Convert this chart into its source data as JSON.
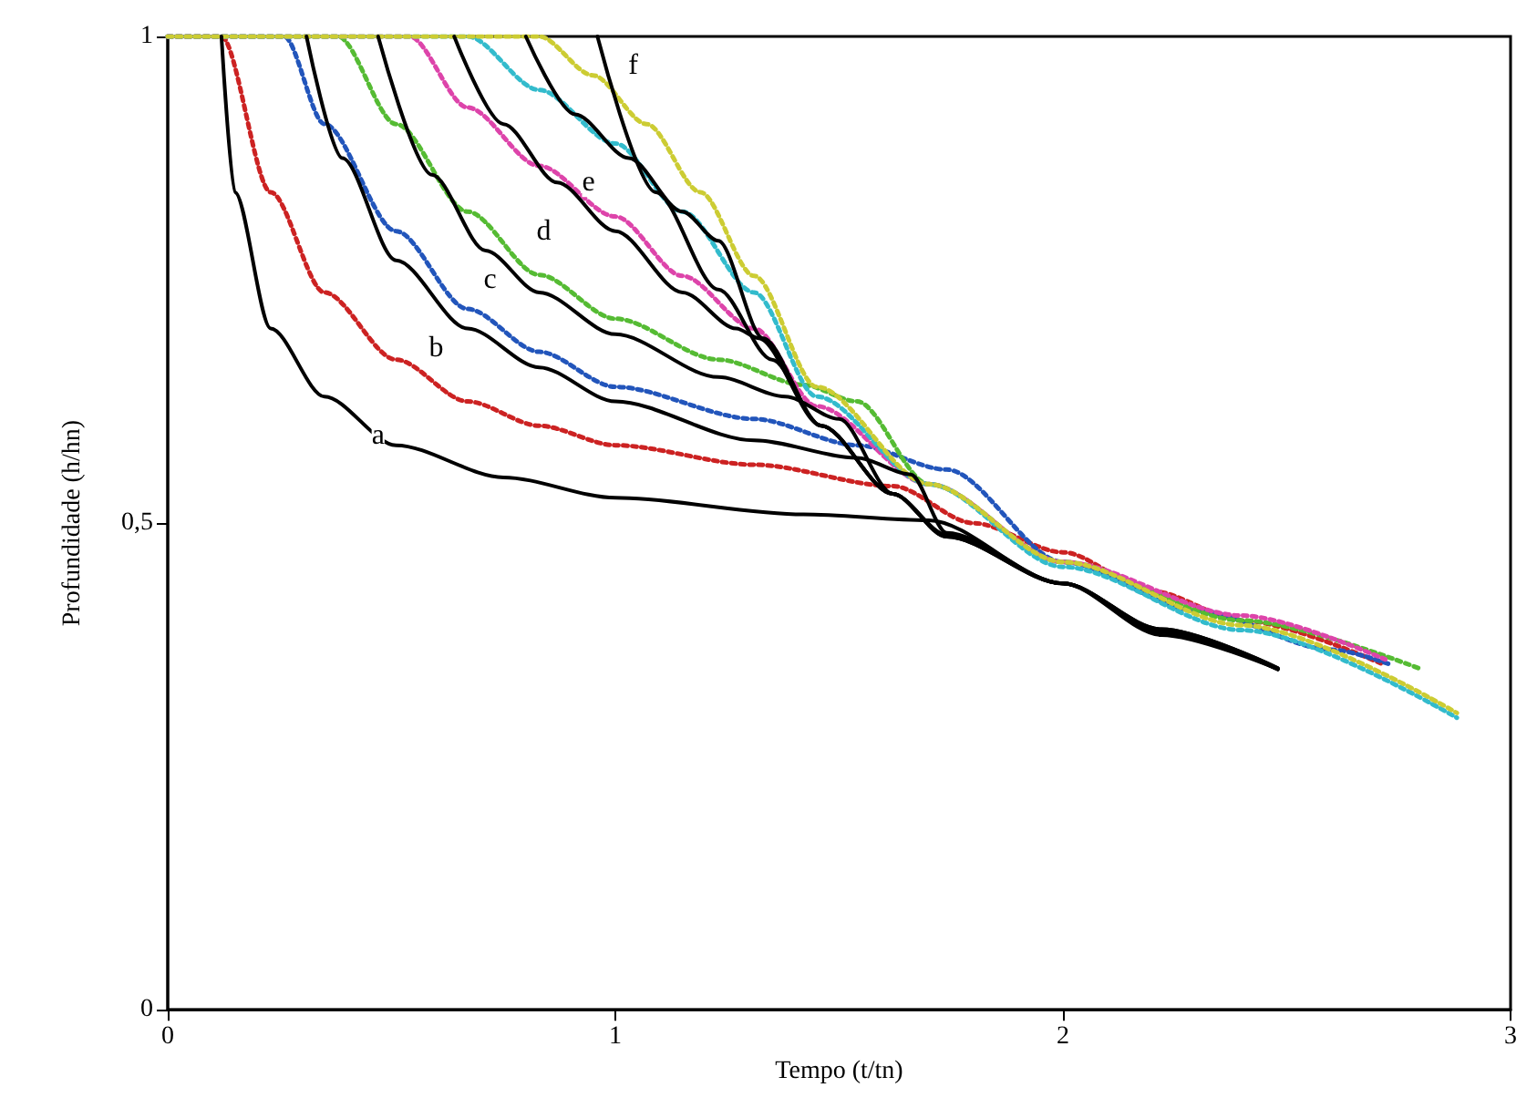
{
  "chart_data": {
    "type": "line",
    "xlabel": "Tempo (t/tn)",
    "ylabel": "Profundidade (h/hn)",
    "xlim": [
      0,
      3
    ],
    "ylim": [
      0,
      1
    ],
    "xticks": [
      0,
      1,
      2,
      3
    ],
    "yticks": [
      0,
      {
        "value": 0.5,
        "label": "0,5"
      },
      1
    ],
    "grid": false,
    "marker": "none",
    "series": [
      {
        "color": "#000000",
        "line_style": "solid",
        "x": [
          0.12,
          0.15,
          0.23,
          0.35,
          0.51,
          0.75,
          1.0,
          1.42,
          1.7,
          2.0,
          2.22,
          2.48
        ],
        "values": [
          1,
          0.84,
          0.7,
          0.63,
          0.58,
          0.547,
          0.526,
          0.509,
          0.503,
          0.438,
          0.385,
          0.35
        ]
      },
      {
        "color": "#000000",
        "line_style": "solid",
        "x": [
          0.31,
          0.39,
          0.51,
          0.67,
          0.83,
          1.0,
          1.31,
          1.54,
          1.66,
          1.74,
          2.0,
          2.22,
          2.48
        ],
        "values": [
          1,
          0.875,
          0.77,
          0.7,
          0.66,
          0.625,
          0.585,
          0.567,
          0.55,
          0.49,
          0.438,
          0.388,
          0.35
        ]
      },
      {
        "color": "#000000",
        "line_style": "solid",
        "x": [
          0.47,
          0.59,
          0.71,
          0.83,
          1.0,
          1.23,
          1.38,
          1.5,
          1.62,
          1.74,
          2.0,
          2.22,
          2.48
        ],
        "values": [
          1,
          0.858,
          0.78,
          0.737,
          0.694,
          0.65,
          0.63,
          0.607,
          0.53,
          0.488,
          0.438,
          0.389,
          0.35
        ]
      },
      {
        "color": "#000000",
        "line_style": "solid",
        "x": [
          0.64,
          0.75,
          0.87,
          1.0,
          1.15,
          1.27,
          1.32,
          1.46,
          1.62,
          1.74,
          2.0,
          2.22,
          2.48
        ],
        "values": [
          1,
          0.91,
          0.85,
          0.8,
          0.737,
          0.7,
          0.69,
          0.6,
          0.53,
          0.487,
          0.438,
          0.39,
          0.35
        ]
      },
      {
        "color": "#000000",
        "line_style": "solid",
        "x": [
          0.8,
          0.91,
          1.03,
          1.15,
          1.23,
          1.33,
          1.46,
          1.62,
          1.74,
          2.0,
          2.22,
          2.48
        ],
        "values": [
          1,
          0.92,
          0.875,
          0.82,
          0.79,
          0.69,
          0.6,
          0.53,
          0.486,
          0.438,
          0.391,
          0.351
        ]
      },
      {
        "color": "#000000",
        "line_style": "solid",
        "x": [
          0.96,
          1.09,
          1.23,
          1.35,
          1.46,
          1.62,
          1.74,
          2.0,
          2.22,
          2.48
        ],
        "values": [
          1,
          0.84,
          0.74,
          0.668,
          0.6,
          0.53,
          0.486,
          0.438,
          0.391,
          0.351
        ]
      },
      {
        "color": "#cc2222",
        "line_style": "dotted",
        "x": [
          0,
          0.12,
          0.23,
          0.35,
          0.51,
          0.67,
          0.83,
          1.0,
          1.31,
          1.62,
          1.8,
          2.0,
          2.2,
          2.4,
          2.71
        ],
        "values": [
          1,
          1,
          0.84,
          0.737,
          0.668,
          0.625,
          0.6,
          0.58,
          0.56,
          0.538,
          0.5,
          0.47,
          0.43,
          0.4,
          0.356
        ]
      },
      {
        "color": "#2255bb",
        "line_style": "dotted",
        "x": [
          0,
          0.26,
          0.35,
          0.51,
          0.67,
          0.83,
          1.0,
          1.31,
          1.54,
          1.74,
          2.0,
          2.3,
          2.6,
          2.73
        ],
        "values": [
          1,
          1,
          0.91,
          0.8,
          0.72,
          0.676,
          0.64,
          0.607,
          0.58,
          0.555,
          0.46,
          0.41,
          0.37,
          0.355
        ]
      },
      {
        "color": "#55bb33",
        "line_style": "dotted",
        "x": [
          0,
          0.38,
          0.51,
          0.67,
          0.83,
          1.0,
          1.23,
          1.42,
          1.54,
          1.7,
          2.0,
          2.4,
          2.8
        ],
        "values": [
          1,
          1,
          0.91,
          0.82,
          0.755,
          0.71,
          0.668,
          0.642,
          0.625,
          0.54,
          0.46,
          0.4,
          0.35
        ]
      },
      {
        "color": "#dd44aa",
        "line_style": "dotted",
        "x": [
          0,
          0.54,
          0.67,
          0.83,
          1.0,
          1.15,
          1.31,
          1.45,
          1.7,
          2.0,
          2.4,
          2.72
        ],
        "values": [
          1,
          1,
          0.927,
          0.867,
          0.815,
          0.754,
          0.7,
          0.62,
          0.54,
          0.46,
          0.405,
          0.36
        ]
      },
      {
        "color": "#33bbcc",
        "line_style": "dotted",
        "x": [
          0,
          0.67,
          0.83,
          1.0,
          1.15,
          1.31,
          1.45,
          1.7,
          2.0,
          2.4,
          2.88
        ],
        "values": [
          1,
          1,
          0.945,
          0.89,
          0.82,
          0.737,
          0.63,
          0.54,
          0.455,
          0.39,
          0.3
        ]
      },
      {
        "color": "#cccc33",
        "line_style": "dotted",
        "x": [
          0,
          0.83,
          0.95,
          1.07,
          1.19,
          1.31,
          1.45,
          1.7,
          2.0,
          2.4,
          2.88
        ],
        "values": [
          1,
          1,
          0.96,
          0.91,
          0.84,
          0.754,
          0.64,
          0.54,
          0.46,
          0.395,
          0.305
        ]
      }
    ],
    "annotations": [
      {
        "text": "a",
        "x": 0.47,
        "y": 0.59
      },
      {
        "text": "b",
        "x": 0.6,
        "y": 0.68
      },
      {
        "text": "c",
        "x": 0.72,
        "y": 0.75
      },
      {
        "text": "d",
        "x": 0.84,
        "y": 0.8
      },
      {
        "text": "e",
        "x": 0.94,
        "y": 0.85
      },
      {
        "text": "f",
        "x": 1.04,
        "y": 0.97
      }
    ]
  }
}
